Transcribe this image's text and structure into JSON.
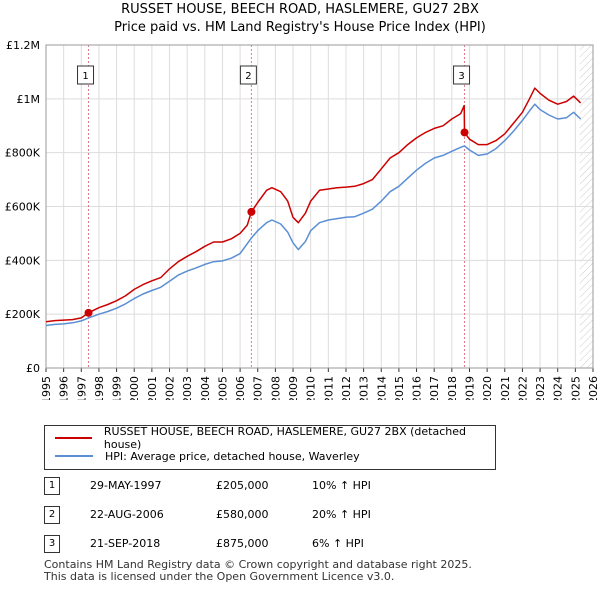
{
  "chart_data": {
    "type": "line",
    "title": "RUSSET HOUSE, BEECH ROAD, HASLEMERE, GU27 2BX",
    "subtitle": "Price paid vs. HM Land Registry's House Price Index (HPI)",
    "x_range": [
      1995,
      2026
    ],
    "ylim": [
      0,
      1200000
    ],
    "x_ticks": [
      "1995",
      "1996",
      "1997",
      "1998",
      "1999",
      "2000",
      "2001",
      "2002",
      "2003",
      "2004",
      "2005",
      "2006",
      "2007",
      "2008",
      "2009",
      "2010",
      "2011",
      "2012",
      "2013",
      "2014",
      "2015",
      "2016",
      "2017",
      "2018",
      "2019",
      "2020",
      "2021",
      "2022",
      "2023",
      "2024",
      "2025",
      "2026"
    ],
    "y_ticks": [
      {
        "value": 0,
        "label": "£0"
      },
      {
        "value": 200000,
        "label": "£200K"
      },
      {
        "value": 400000,
        "label": "£400K"
      },
      {
        "value": 600000,
        "label": "£600K"
      },
      {
        "value": 800000,
        "label": "£800K"
      },
      {
        "value": 1000000,
        "label": "£1M"
      },
      {
        "value": 1200000,
        "label": "£1.2M"
      }
    ],
    "grid": true,
    "future_hatch_from": 2025.25,
    "series": [
      {
        "name": "RUSSET HOUSE, BEECH ROAD, HASLEMERE, GU27 2BX (detached house)",
        "color": "#cc0000",
        "points": [
          [
            1995.0,
            172000
          ],
          [
            1995.5,
            176000
          ],
          [
            1996.0,
            178000
          ],
          [
            1996.5,
            180000
          ],
          [
            1997.0,
            186000
          ],
          [
            1997.41,
            205000
          ],
          [
            1998.0,
            224000
          ],
          [
            1998.5,
            236000
          ],
          [
            1999.0,
            250000
          ],
          [
            1999.5,
            268000
          ],
          [
            2000.0,
            292000
          ],
          [
            2000.5,
            310000
          ],
          [
            2001.0,
            324000
          ],
          [
            2001.5,
            336000
          ],
          [
            2002.0,
            368000
          ],
          [
            2002.5,
            395000
          ],
          [
            2003.0,
            415000
          ],
          [
            2003.5,
            432000
          ],
          [
            2004.0,
            452000
          ],
          [
            2004.5,
            468000
          ],
          [
            2005.0,
            468000
          ],
          [
            2005.5,
            480000
          ],
          [
            2006.0,
            500000
          ],
          [
            2006.4,
            530000
          ],
          [
            2006.64,
            580000
          ],
          [
            2007.0,
            615000
          ],
          [
            2007.5,
            660000
          ],
          [
            2007.8,
            670000
          ],
          [
            2008.3,
            655000
          ],
          [
            2008.7,
            620000
          ],
          [
            2009.0,
            560000
          ],
          [
            2009.3,
            540000
          ],
          [
            2009.7,
            575000
          ],
          [
            2010.0,
            620000
          ],
          [
            2010.5,
            660000
          ],
          [
            2011.0,
            665000
          ],
          [
            2011.5,
            670000
          ],
          [
            2012.0,
            672000
          ],
          [
            2012.5,
            675000
          ],
          [
            2013.0,
            685000
          ],
          [
            2013.5,
            700000
          ],
          [
            2014.0,
            740000
          ],
          [
            2014.5,
            780000
          ],
          [
            2015.0,
            800000
          ],
          [
            2015.5,
            830000
          ],
          [
            2016.0,
            855000
          ],
          [
            2016.5,
            875000
          ],
          [
            2017.0,
            890000
          ],
          [
            2017.5,
            900000
          ],
          [
            2018.0,
            925000
          ],
          [
            2018.5,
            945000
          ],
          [
            2018.7,
            975000
          ],
          [
            2018.72,
            875000
          ],
          [
            2019.0,
            850000
          ],
          [
            2019.5,
            830000
          ],
          [
            2020.0,
            830000
          ],
          [
            2020.5,
            845000
          ],
          [
            2021.0,
            870000
          ],
          [
            2021.5,
            910000
          ],
          [
            2022.0,
            950000
          ],
          [
            2022.4,
            1000000
          ],
          [
            2022.7,
            1040000
          ],
          [
            2023.0,
            1020000
          ],
          [
            2023.5,
            995000
          ],
          [
            2024.0,
            980000
          ],
          [
            2024.5,
            990000
          ],
          [
            2024.9,
            1010000
          ],
          [
            2025.3,
            985000
          ]
        ]
      },
      {
        "name": "HPI: Average price, detached house, Waverley",
        "color": "#5b8fd4",
        "points": [
          [
            1995.0,
            158000
          ],
          [
            1995.5,
            162000
          ],
          [
            1996.0,
            164000
          ],
          [
            1996.5,
            168000
          ],
          [
            1997.0,
            175000
          ],
          [
            1997.41,
            186000
          ],
          [
            1998.0,
            200000
          ],
          [
            1998.5,
            210000
          ],
          [
            1999.0,
            222000
          ],
          [
            1999.5,
            238000
          ],
          [
            2000.0,
            258000
          ],
          [
            2000.5,
            275000
          ],
          [
            2001.0,
            288000
          ],
          [
            2001.5,
            300000
          ],
          [
            2002.0,
            322000
          ],
          [
            2002.5,
            345000
          ],
          [
            2003.0,
            360000
          ],
          [
            2003.5,
            372000
          ],
          [
            2004.0,
            385000
          ],
          [
            2004.5,
            395000
          ],
          [
            2005.0,
            398000
          ],
          [
            2005.5,
            408000
          ],
          [
            2006.0,
            425000
          ],
          [
            2006.64,
            483000
          ],
          [
            2007.0,
            510000
          ],
          [
            2007.5,
            540000
          ],
          [
            2007.8,
            550000
          ],
          [
            2008.3,
            535000
          ],
          [
            2008.7,
            505000
          ],
          [
            2009.0,
            465000
          ],
          [
            2009.3,
            440000
          ],
          [
            2009.7,
            470000
          ],
          [
            2010.0,
            510000
          ],
          [
            2010.5,
            540000
          ],
          [
            2011.0,
            550000
          ],
          [
            2011.5,
            555000
          ],
          [
            2012.0,
            560000
          ],
          [
            2012.5,
            562000
          ],
          [
            2013.0,
            575000
          ],
          [
            2013.5,
            590000
          ],
          [
            2014.0,
            620000
          ],
          [
            2014.5,
            655000
          ],
          [
            2015.0,
            675000
          ],
          [
            2015.5,
            705000
          ],
          [
            2016.0,
            735000
          ],
          [
            2016.5,
            760000
          ],
          [
            2017.0,
            780000
          ],
          [
            2017.5,
            790000
          ],
          [
            2018.0,
            805000
          ],
          [
            2018.5,
            820000
          ],
          [
            2018.72,
            825000
          ],
          [
            2019.0,
            810000
          ],
          [
            2019.5,
            790000
          ],
          [
            2020.0,
            795000
          ],
          [
            2020.5,
            815000
          ],
          [
            2021.0,
            845000
          ],
          [
            2021.5,
            880000
          ],
          [
            2022.0,
            920000
          ],
          [
            2022.4,
            955000
          ],
          [
            2022.7,
            980000
          ],
          [
            2023.0,
            960000
          ],
          [
            2023.5,
            940000
          ],
          [
            2024.0,
            925000
          ],
          [
            2024.5,
            930000
          ],
          [
            2024.9,
            950000
          ],
          [
            2025.3,
            925000
          ]
        ]
      }
    ],
    "sale_markers": [
      {
        "label": "1",
        "x": 1997.41,
        "value": 205000
      },
      {
        "label": "2",
        "x": 2006.64,
        "value": 580000
      },
      {
        "label": "3",
        "x": 2018.72,
        "value": 875000
      }
    ]
  },
  "legend": {
    "property": "RUSSET HOUSE, BEECH ROAD, HASLEMERE, GU27 2BX (detached house)",
    "hpi": "HPI: Average price, detached house, Waverley"
  },
  "sales": [
    {
      "num": "1",
      "date": "29-MAY-1997",
      "price": "£205,000",
      "hpi": "10% ↑ HPI"
    },
    {
      "num": "2",
      "date": "22-AUG-2006",
      "price": "£580,000",
      "hpi": "20% ↑ HPI"
    },
    {
      "num": "3",
      "date": "21-SEP-2018",
      "price": "£875,000",
      "hpi": "6% ↑ HPI"
    }
  ],
  "footer": {
    "line1": "Contains HM Land Registry data © Crown copyright and database right 2025.",
    "line2": "This data is licensed under the Open Government Licence v3.0."
  },
  "colors": {
    "property": "#cc0000",
    "hpi": "#5b8fd4",
    "grid": "#dddddd",
    "marker_line": "#e07a8a"
  }
}
